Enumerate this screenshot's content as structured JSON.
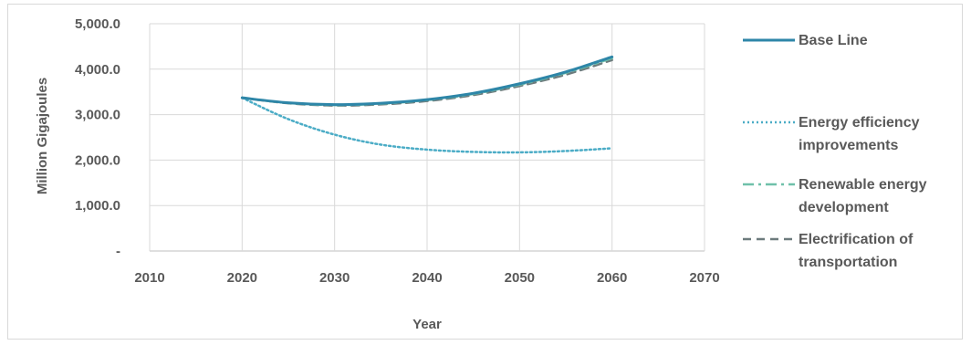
{
  "chart_data": {
    "type": "line",
    "xlabel": "Year",
    "ylabel": "Million Gigajoules",
    "xlim": [
      2010,
      2070
    ],
    "ylim": [
      0,
      5000
    ],
    "x_ticks": [
      "2010",
      "2020",
      "2030",
      "2040",
      "2050",
      "2060",
      "2070"
    ],
    "y_ticks": [
      "-",
      "1,000.0",
      "2,000.0",
      "3,000.0",
      "4,000.0",
      "5,000.0"
    ],
    "grid": true,
    "legend_position": "right",
    "series": [
      {
        "name": "Base Line",
        "legend_lines": [
          "Base Line"
        ],
        "color": "#2e86a8",
        "style": "solid",
        "x": [
          2020,
          2025,
          2030,
          2035,
          2040,
          2045,
          2050,
          2055,
          2060
        ],
        "y": [
          3370,
          3260,
          3220,
          3250,
          3330,
          3470,
          3680,
          3940,
          4270
        ]
      },
      {
        "name": "Energy efficiency improvements",
        "legend_lines": [
          "Energy efficiency",
          "improvements"
        ],
        "color": "#4bacc6",
        "style": "dotted",
        "x": [
          2020,
          2025,
          2030,
          2035,
          2040,
          2045,
          2050,
          2055,
          2060
        ],
        "y": [
          3370,
          2900,
          2560,
          2340,
          2230,
          2180,
          2170,
          2200,
          2260
        ]
      },
      {
        "name": "Renewable energy development",
        "legend_lines": [
          "Renewable energy",
          "development"
        ],
        "color": "#6fc0a9",
        "style": "dashdot",
        "x": [
          2020,
          2025,
          2030,
          2035,
          2040,
          2045,
          2050,
          2055,
          2060
        ],
        "y": [
          3370,
          3255,
          3210,
          3240,
          3320,
          3455,
          3660,
          3920,
          4240
        ]
      },
      {
        "name": "Electrification of transportation",
        "legend_lines": [
          "Electrification of",
          "transportation"
        ],
        "color": "#6d7b7d",
        "style": "dashed",
        "x": [
          2020,
          2025,
          2030,
          2035,
          2040,
          2045,
          2050,
          2055,
          2060
        ],
        "y": [
          3370,
          3250,
          3200,
          3225,
          3300,
          3430,
          3630,
          3880,
          4200
        ]
      }
    ]
  }
}
